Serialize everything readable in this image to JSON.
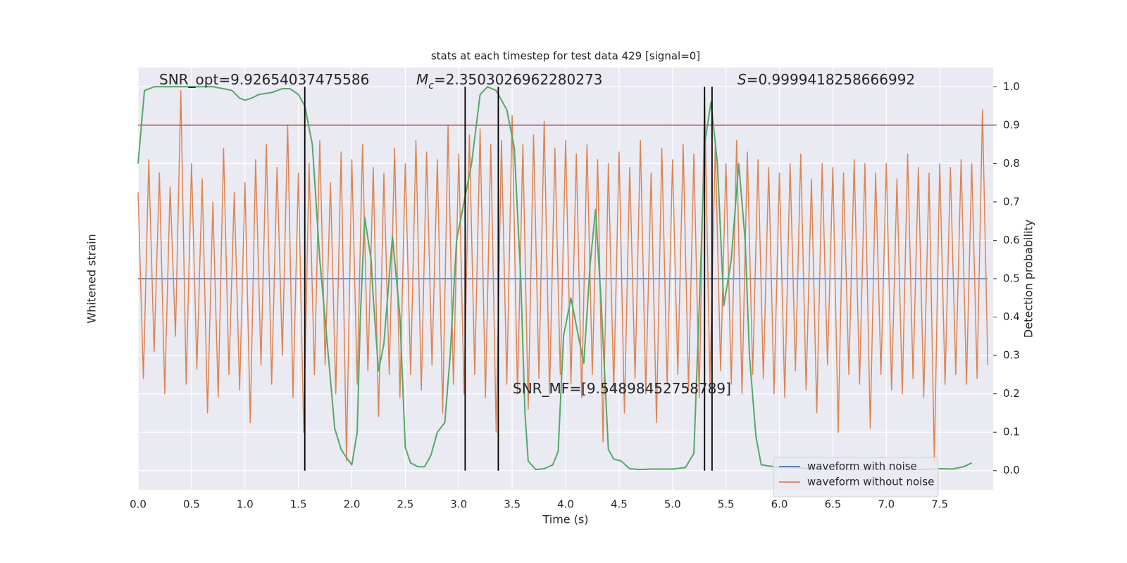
{
  "chart_data": {
    "type": "line",
    "title": "stats at each timestep for test data 429 [signal=0]",
    "x_label": "Time (s)",
    "y_label": "Whitened strain",
    "y2_label": "Detection probability",
    "xlim": [
      0,
      8
    ],
    "xticks": [
      {
        "value": 0,
        "label": "0.0"
      },
      0.5,
      {
        "value": 1,
        "label": "1.0"
      },
      1.5,
      {
        "value": 2,
        "label": "2.0"
      },
      2.5,
      {
        "value": 3,
        "label": "3.0"
      },
      3.5,
      {
        "value": 4,
        "label": "4.0"
      },
      4.5,
      {
        "value": 5,
        "label": "5.0"
      },
      5.5,
      {
        "value": 6,
        "label": "6.0"
      },
      6.5,
      {
        "value": 7,
        "label": "7.0"
      },
      7.5
    ],
    "ylim": [
      -1.1,
      1.1
    ],
    "y2lim": [
      -0.05,
      1.05
    ],
    "y2ticks": [
      {
        "value": 0,
        "label": "0.0"
      },
      0.1,
      0.2,
      0.3,
      0.4,
      0.5,
      0.6,
      0.7,
      0.8,
      0.9,
      {
        "value": 1,
        "label": "1.0"
      }
    ],
    "grid": true,
    "legend": "lower right",
    "series": [
      {
        "name": "waveform with noise",
        "color": "#4c72b0",
        "x": [
          0,
          7.95
        ],
        "values": [
          0,
          0
        ]
      },
      {
        "name": "waveform without noise",
        "color": "#dd8452",
        "x": [
          0,
          0.05,
          0.1,
          0.15,
          0.2,
          0.25,
          0.3,
          0.35,
          0.4,
          0.45,
          0.5,
          0.55,
          0.6,
          0.65,
          0.7,
          0.75,
          0.8,
          0.85,
          0.9,
          0.95,
          1,
          1.05,
          1.1,
          1.15,
          1.2,
          1.25,
          1.3,
          1.35,
          1.4,
          1.45,
          1.5,
          1.55,
          1.6,
          1.65,
          1.7,
          1.75,
          1.8,
          1.85,
          1.9,
          1.95,
          2,
          2.05,
          2.1,
          2.15,
          2.2,
          2.25,
          2.3,
          2.35,
          2.4,
          2.45,
          2.5,
          2.55,
          2.6,
          2.65,
          2.7,
          2.75,
          2.8,
          2.85,
          2.9,
          2.95,
          3,
          3.05,
          3.1,
          3.15,
          3.2,
          3.25,
          3.3,
          3.35,
          3.4,
          3.45,
          3.5,
          3.55,
          3.6,
          3.65,
          3.7,
          3.75,
          3.8,
          3.85,
          3.9,
          3.95,
          4,
          4.05,
          4.1,
          4.15,
          4.2,
          4.25,
          4.3,
          4.35,
          4.4,
          4.45,
          4.5,
          4.55,
          4.6,
          4.65,
          4.7,
          4.75,
          4.8,
          4.85,
          4.9,
          4.95,
          5,
          5.05,
          5.1,
          5.15,
          5.2,
          5.25,
          5.3,
          5.35,
          5.4,
          5.45,
          5.5,
          5.55,
          5.6,
          5.65,
          5.7,
          5.75,
          5.8,
          5.85,
          5.9,
          5.95,
          6,
          6.05,
          6.1,
          6.15,
          6.2,
          6.25,
          6.3,
          6.35,
          6.4,
          6.45,
          6.5,
          6.55,
          6.6,
          6.65,
          6.7,
          6.75,
          6.8,
          6.85,
          6.9,
          6.95,
          7,
          7.05,
          7.1,
          7.15,
          7.2,
          7.25,
          7.3,
          7.35,
          7.4,
          7.45,
          7.5,
          7.55,
          7.6,
          7.65,
          7.7,
          7.75,
          7.8,
          7.85,
          7.9,
          7.95
        ],
        "values": [
          0.45,
          -0.52,
          0.62,
          -0.38,
          0.55,
          -0.6,
          0.48,
          -0.3,
          0.98,
          -0.55,
          0.6,
          -0.47,
          0.52,
          -0.7,
          0.4,
          -0.62,
          0.68,
          -0.5,
          0.45,
          -0.58,
          0.5,
          -0.75,
          0.62,
          -0.45,
          0.7,
          -0.55,
          0.58,
          -0.4,
          0.8,
          -0.62,
          0.55,
          -0.8,
          0.6,
          -0.5,
          0.72,
          -0.45,
          0.5,
          -0.6,
          0.66,
          -0.95,
          0.62,
          -0.55,
          0.7,
          -0.48,
          0.58,
          -0.72,
          0.55,
          -0.5,
          0.68,
          -0.62,
          0.6,
          -0.5,
          0.72,
          -0.58,
          0.66,
          -0.45,
          0.62,
          -0.7,
          0.8,
          -0.55,
          0.65,
          -0.6,
          0.75,
          -0.5,
          0.78,
          -0.62,
          0.7,
          -0.8,
          0.72,
          -0.55,
          0.85,
          -0.6,
          0.7,
          -0.68,
          0.75,
          -0.52,
          0.82,
          -0.6,
          0.68,
          -0.5,
          0.72,
          -0.55,
          0.65,
          -0.62,
          0.7,
          -0.5,
          0.62,
          -0.85,
          0.6,
          -0.58,
          0.66,
          -0.7,
          0.58,
          -0.52,
          0.72,
          -0.6,
          0.55,
          -0.75,
          0.68,
          -0.55,
          0.62,
          -0.5,
          0.7,
          -0.58,
          0.65,
          -0.62,
          0.95,
          -0.55,
          0.7,
          -0.48,
          0.6,
          -0.55,
          0.72,
          -0.6,
          0.66,
          -0.5,
          0.62,
          -0.52,
          0.58,
          -0.6,
          0.55,
          -0.62,
          0.6,
          -0.48,
          0.65,
          -0.58,
          0.52,
          -0.7,
          0.6,
          -0.45,
          0.58,
          -0.8,
          0.55,
          -0.5,
          0.62,
          -0.55,
          0.6,
          -0.78,
          0.55,
          -0.5,
          0.6,
          -0.58,
          0.52,
          -0.6,
          0.65,
          -0.52,
          0.58,
          -0.62,
          0.55,
          -0.95,
          0.6,
          -0.55,
          0.58,
          -0.5,
          0.62,
          -0.55,
          0.6,
          -0.52,
          0.88,
          -0.45
        ]
      },
      {
        "name": "detection probability",
        "color": "#55a868",
        "axis": "y2",
        "in_legend": false,
        "x": [
          0,
          0.06,
          0.15,
          0.3,
          0.5,
          0.7,
          0.8,
          0.88,
          0.95,
          1,
          1.06,
          1.13,
          1.25,
          1.35,
          1.42,
          1.5,
          1.56,
          1.63,
          1.7,
          1.78,
          1.84,
          1.9,
          1.96,
          2,
          2.05,
          2.08,
          2.12,
          2.18,
          2.2,
          2.25,
          2.3,
          2.38,
          2.45,
          2.5,
          2.55,
          2.62,
          2.68,
          2.74,
          2.8,
          2.87,
          2.92,
          2.98,
          3.05,
          3.12,
          3.2,
          3.27,
          3.35,
          3.45,
          3.52,
          3.58,
          3.62,
          3.65,
          3.72,
          3.8,
          3.88,
          3.93,
          3.98,
          4.05,
          4.12,
          4.17,
          4.23,
          4.28,
          4.33,
          4.4,
          4.45,
          4.52,
          4.6,
          4.7,
          4.8,
          5,
          5.12,
          5.2,
          5.26,
          5.3,
          5.36,
          5.42,
          5.48,
          5.55,
          5.62,
          5.68,
          5.72,
          5.78,
          5.83,
          5.95,
          6.1,
          6.3,
          6.6,
          7,
          7.3,
          7.5,
          7.62,
          7.72,
          7.8
        ],
        "values": [
          0.8,
          0.99,
          1,
          1,
          1,
          1,
          0.995,
          0.99,
          0.97,
          0.965,
          0.97,
          0.98,
          0.985,
          0.995,
          0.995,
          0.98,
          0.95,
          0.85,
          0.55,
          0.3,
          0.11,
          0.055,
          0.03,
          0.015,
          0.1,
          0.4,
          0.66,
          0.55,
          0.45,
          0.26,
          0.33,
          0.61,
          0.4,
          0.06,
          0.02,
          0.01,
          0.01,
          0.04,
          0.1,
          0.125,
          0.3,
          0.6,
          0.7,
          0.8,
          0.98,
          1,
          0.99,
          0.94,
          0.84,
          0.5,
          0.15,
          0.025,
          0.003,
          0.005,
          0.015,
          0.05,
          0.35,
          0.45,
          0.35,
          0.28,
          0.54,
          0.68,
          0.45,
          0.055,
          0.03,
          0.025,
          0.005,
          0.003,
          0.004,
          0.004,
          0.008,
          0.045,
          0.5,
          0.85,
          0.96,
          0.8,
          0.43,
          0.55,
          0.8,
          0.6,
          0.3,
          0.09,
          0.015,
          0.01,
          0.008,
          0.005,
          0.003,
          0.003,
          0.003,
          0.005,
          0.004,
          0.01,
          0.02
        ]
      }
    ],
    "threshold": {
      "value": 0.9,
      "axis": "y2",
      "color": "#c44e52"
    },
    "vlines": {
      "x": [
        1.56,
        3.06,
        3.37,
        5.3,
        5.37
      ],
      "ymin": 0,
      "ymax": 1,
      "axis": "y2",
      "color": "#000000"
    },
    "annotations": [
      {
        "text": "SNR_opt=9.92654037475586"
      },
      {
        "symbol": "M",
        "subscript": "c",
        "text": "=2.3503026962280273"
      },
      {
        "symbol": "S",
        "text": "=0.9999418258666992"
      },
      {
        "text": "SNR_MF=[9.54898452758789]"
      }
    ]
  }
}
